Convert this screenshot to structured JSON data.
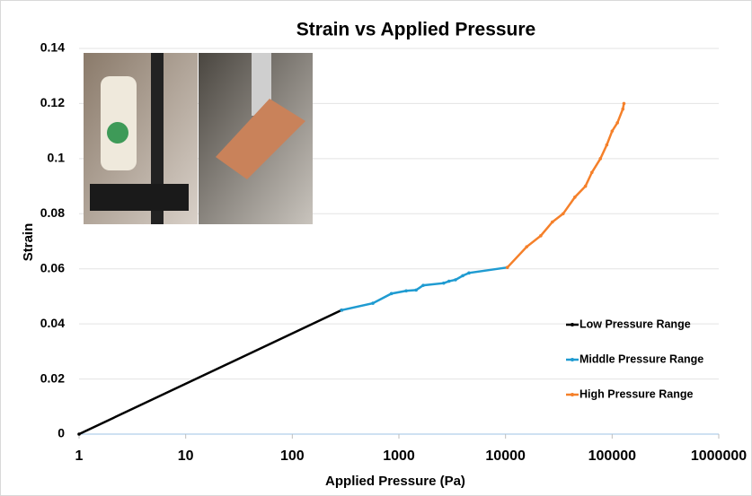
{
  "chart_data": {
    "type": "line",
    "title": "Strain vs Applied Pressure",
    "x_label": "Applied Pressure (Pa)",
    "y_label": "Strain",
    "xscale": "log",
    "xlim": [
      1,
      1000000
    ],
    "xticks": [
      1,
      10,
      100,
      1000,
      10000,
      100000,
      1000000
    ],
    "ylim": [
      0,
      0.14
    ],
    "yticks": [
      0,
      0.02,
      0.04,
      0.06,
      0.08,
      0.1,
      0.12,
      0.14
    ],
    "grid": true,
    "legend": "right",
    "series": [
      {
        "name": "Low Pressure Range",
        "color": "#000000",
        "x": [
          1,
          290
        ],
        "values": [
          0,
          0.045
        ]
      },
      {
        "name": "Middle Pressure Range",
        "color": "#1f9bd1",
        "x": [
          290,
          570,
          850,
          1170,
          1450,
          1690,
          2630,
          2950,
          3390,
          3970,
          4540,
          10400
        ],
        "values": [
          0.045,
          0.0475,
          0.051,
          0.052,
          0.0523,
          0.054,
          0.0548,
          0.0555,
          0.056,
          0.0575,
          0.0585,
          0.0605
        ]
      },
      {
        "name": "High Pressure Range",
        "color": "#f5802a",
        "x": [
          10400,
          15800,
          21400,
          27500,
          34700,
          44700,
          56200,
          64600,
          77600,
          89100,
          100000,
          112000,
          126000,
          129000
        ],
        "values": [
          0.0605,
          0.068,
          0.072,
          0.077,
          0.08,
          0.086,
          0.09,
          0.095,
          0.1,
          0.105,
          0.11,
          0.113,
          0.118,
          0.12
        ]
      }
    ]
  }
}
